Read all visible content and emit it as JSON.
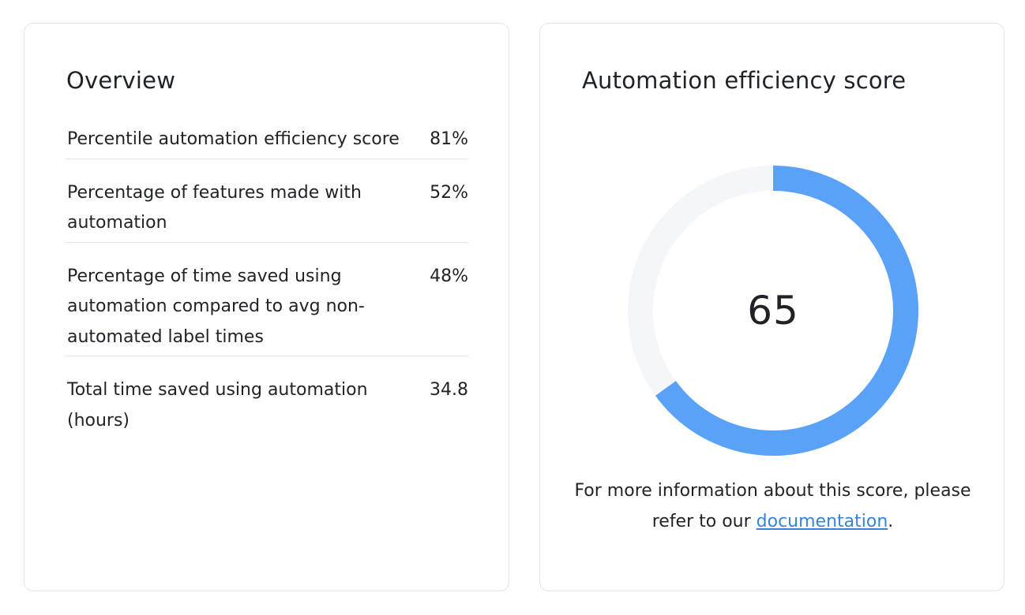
{
  "overview": {
    "title": "Overview",
    "metrics": [
      {
        "label": "Percentile automation efficiency score",
        "value": "81%"
      },
      {
        "label": "Percentage of features made with automation",
        "value": "52%"
      },
      {
        "label": "Percentage of time saved using automation compared to avg non-automated label times",
        "value": "48%"
      },
      {
        "label": "Total time saved using automation (hours)",
        "value": "34.8"
      }
    ]
  },
  "score": {
    "title": "Automation efficiency score",
    "value": "65",
    "fraction": 0.65,
    "info_prefix": "For more information about this score, please refer to our ",
    "link_text": "documentation",
    "info_suffix": "."
  },
  "colors": {
    "ring_fill": "#5aa2f8",
    "ring_track": "#f4f6f9",
    "link": "#3b82d6"
  }
}
